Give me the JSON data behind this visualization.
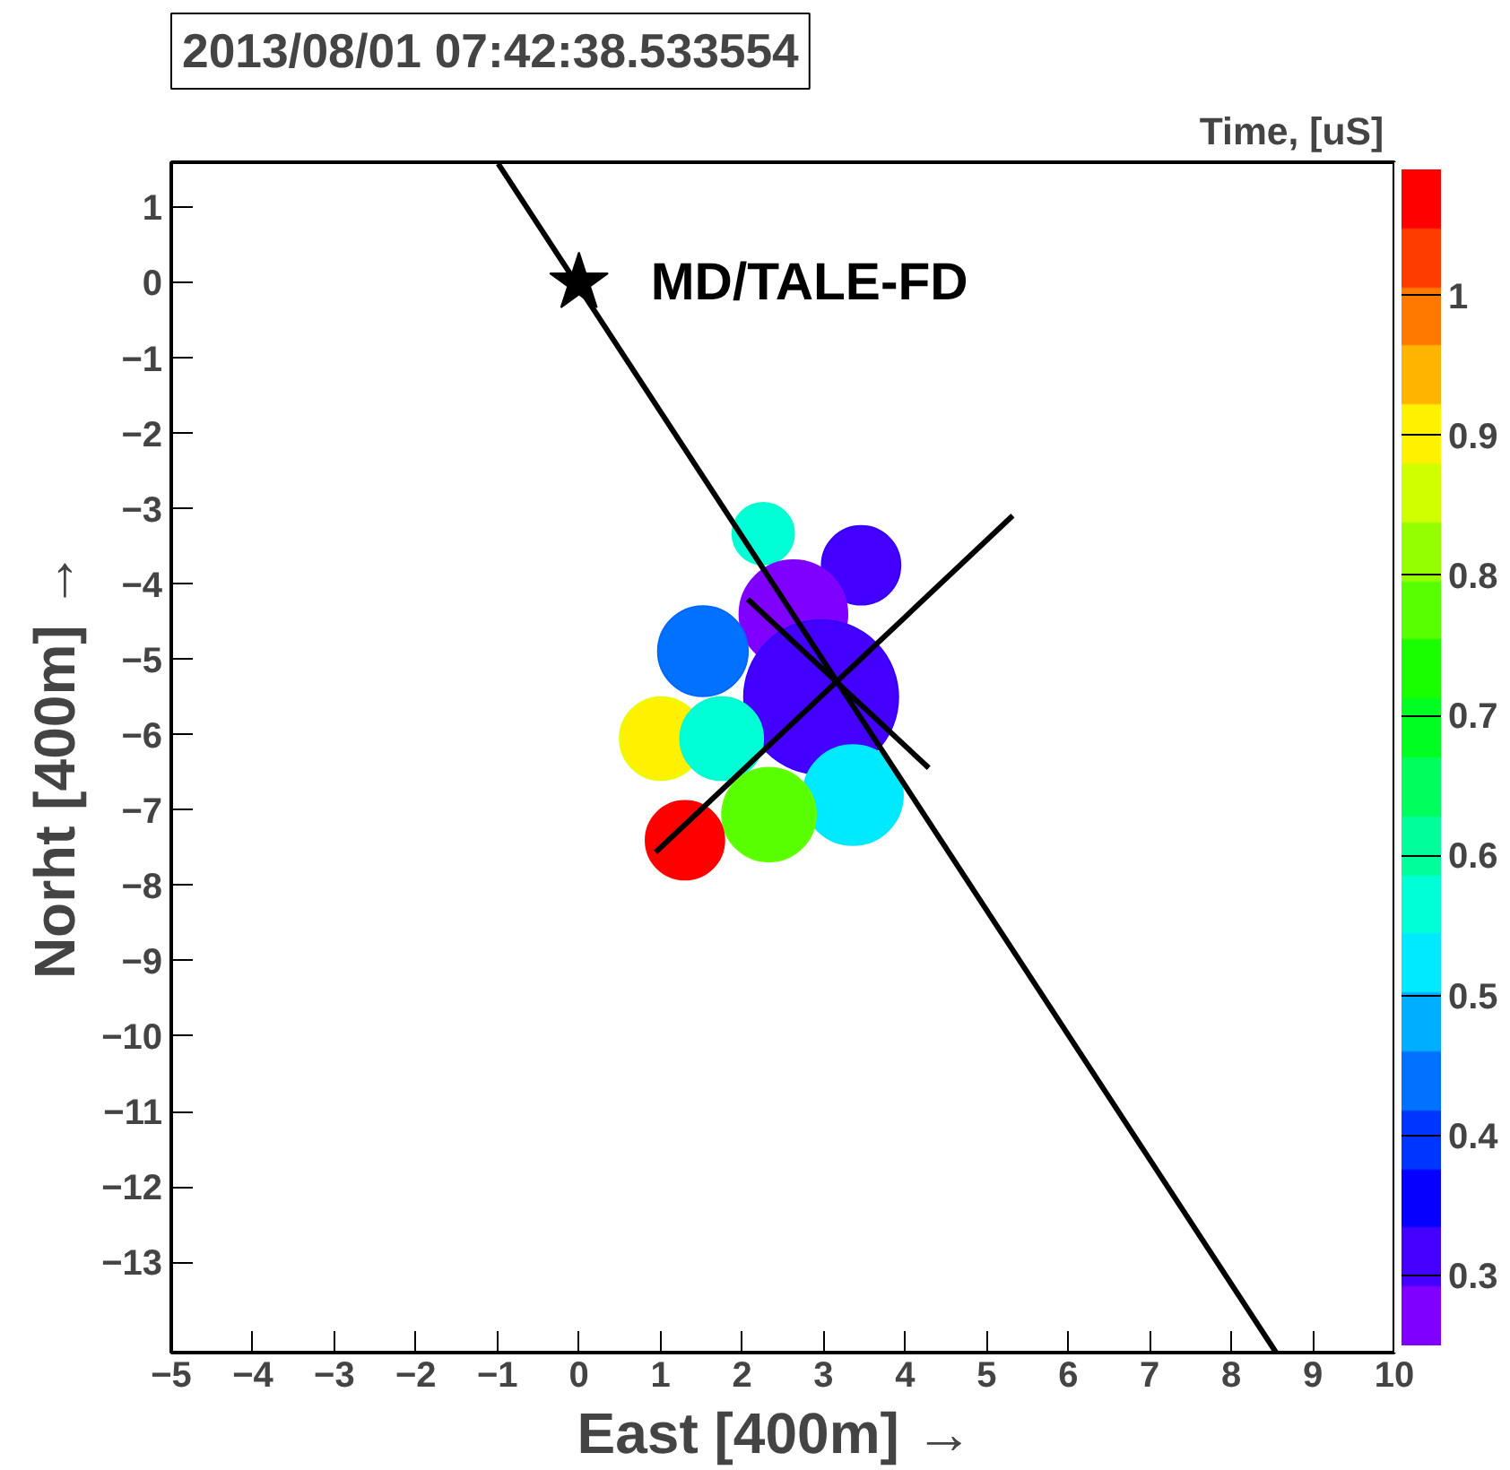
{
  "chart_data": {
    "type": "bubble",
    "title": "2013/08/01 07:42:38.533554",
    "xlabel": "East [400m]  →",
    "ylabel": "Norht [400m]  →",
    "clabel": "Time,  [uS]",
    "xlim": [
      -5,
      10
    ],
    "ylim": [
      -14.2,
      1.6
    ],
    "xticks": [
      -5,
      -4,
      -3,
      -2,
      -1,
      0,
      1,
      2,
      3,
      4,
      5,
      6,
      7,
      8,
      9,
      10
    ],
    "yticks": [
      -13,
      -12,
      -11,
      -10,
      -9,
      -8,
      -7,
      -6,
      -5,
      -4,
      -3,
      -2,
      -1,
      0,
      1
    ],
    "clim": [
      0.25,
      1.09
    ],
    "cticks": [
      0.3,
      0.4,
      0.5,
      0.6,
      0.7,
      0.8,
      0.9,
      1
    ],
    "grid": false,
    "series": [
      {
        "x": [
          2.26,
          3.46,
          2.63,
          1.52,
          2.97,
          1.01,
          1.75,
          3.36,
          2.33,
          1.3
        ],
        "values": [
          -3.33,
          -3.75,
          -4.4,
          -4.89,
          -5.5,
          -6.05,
          -6.05,
          -6.8,
          -7.06,
          -7.4
        ],
        "sizes": [
          0.16,
          0.26,
          0.49,
          0.34,
          1,
          0.29,
          0.29,
          0.42,
          0.37,
          0.26
        ],
        "cvalues": [
          0.57,
          0.33,
          0.28,
          0.45,
          0.33,
          0.88,
          0.57,
          0.52,
          0.77,
          1.06
        ],
        "colors": [
          "#00ffcc",
          "#3300ff",
          "#7f00ff",
          "#0066ff",
          "#3300ff",
          "#e6ff00",
          "#00ffcc",
          "#00e6ff",
          "#66ff00",
          "#ff0000"
        ]
      },
      {
        "type": "line",
        "color": "#000000",
        "x": [
          -0.99,
          8.55
        ],
        "values": [
          1.58,
          -14.2
        ]
      },
      {
        "type": "line",
        "color": "#000000",
        "x": [
          2.07,
          4.29
        ],
        "values": [
          -4.2,
          -6.44
        ]
      },
      {
        "type": "line",
        "color": "#000000",
        "x": [
          5.32,
          0.94
        ],
        "values": [
          -3.09,
          -7.56
        ]
      },
      {
        "type": "scatter",
        "marker": "star",
        "color": "#000000",
        "x": [
          0
        ],
        "values": [
          0
        ]
      }
    ],
    "annotations": [
      {
        "text": "MD/TALE-FD",
        "x": 0,
        "y": 0
      }
    ]
  }
}
